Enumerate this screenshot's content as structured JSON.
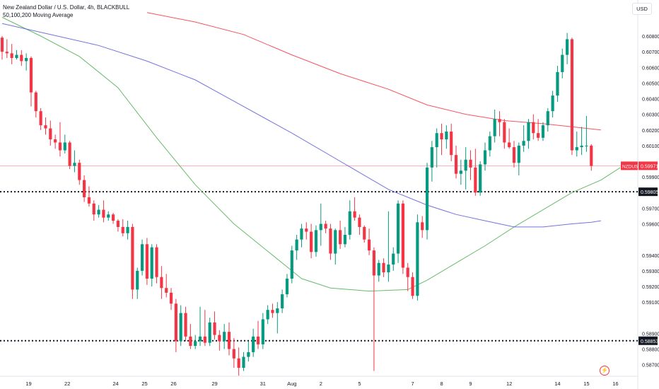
{
  "legend": {
    "title": "New Zealand Dollar / U.S. Dollar, 4h, BLACKBULL",
    "indicator": "50,100,200 Moving Average"
  },
  "currency_label": "USD",
  "colors": {
    "up": "#089981",
    "down": "#f23645",
    "ma50": "#4caf50",
    "ma100": "#5b5bd6",
    "ma200": "#f23645",
    "axis_text": "#131722",
    "price_line": "#f23645"
  },
  "icons": {
    "badge": "lightning-icon"
  },
  "chart_data": {
    "type": "candlestick",
    "symbol": "NZDUSD",
    "price_label": "NZDUSD",
    "ylim": [
      0.58635,
      0.60895
    ],
    "y_ticks": [
      {
        "value": 0.587,
        "label": "0.58700"
      },
      {
        "value": 0.588,
        "label": "0.58800"
      },
      {
        "value": 0.589,
        "label": "0.58900"
      },
      {
        "value": 0.591,
        "label": "0.59100"
      },
      {
        "value": 0.592,
        "label": "0.59200"
      },
      {
        "value": 0.593,
        "label": "0.59300"
      },
      {
        "value": 0.594,
        "label": "0.59400"
      },
      {
        "value": 0.596,
        "label": "0.59600"
      },
      {
        "value": 0.597,
        "label": "0.59700"
      },
      {
        "value": 0.599,
        "label": "0.59900"
      },
      {
        "value": 0.601,
        "label": "0.60100"
      },
      {
        "value": 0.602,
        "label": "0.60200"
      },
      {
        "value": 0.603,
        "label": "0.60300"
      },
      {
        "value": 0.604,
        "label": "0.60400"
      },
      {
        "value": 0.605,
        "label": "0.60500"
      },
      {
        "value": 0.606,
        "label": "0.60600"
      },
      {
        "value": 0.607,
        "label": "0.60700"
      },
      {
        "value": 0.608,
        "label": "0.60800"
      }
    ],
    "x_ticks": [
      {
        "i": 5.5,
        "label": "19"
      },
      {
        "i": 13.5,
        "label": "22"
      },
      {
        "i": 23.5,
        "label": "24"
      },
      {
        "i": 29.5,
        "label": "25"
      },
      {
        "i": 35.5,
        "label": "26"
      },
      {
        "i": 44,
        "label": "29"
      },
      {
        "i": 54,
        "label": "31"
      },
      {
        "i": 60,
        "label": "Aug"
      },
      {
        "i": 66,
        "label": "2"
      },
      {
        "i": 74,
        "label": "5"
      },
      {
        "i": 85,
        "label": "7"
      },
      {
        "i": 91,
        "label": "8"
      },
      {
        "i": 97,
        "label": "9"
      },
      {
        "i": 105,
        "label": "12"
      },
      {
        "i": 115,
        "label": "14"
      },
      {
        "i": 121,
        "label": "15"
      },
      {
        "i": 127,
        "label": "16"
      }
    ],
    "candles": [
      [
        0.6079,
        0.608,
        0.6065,
        0.607
      ],
      [
        0.607,
        0.6078,
        0.6066,
        0.6069
      ],
      [
        0.6069,
        0.6075,
        0.6062,
        0.6066
      ],
      [
        0.6066,
        0.6071,
        0.6065,
        0.6068
      ],
      [
        0.6068,
        0.6071,
        0.6061,
        0.6064
      ],
      [
        0.6064,
        0.6069,
        0.6058,
        0.6066
      ],
      [
        0.6066,
        0.6067,
        0.6035,
        0.6044
      ],
      [
        0.6044,
        0.6045,
        0.6028,
        0.6032
      ],
      [
        0.6032,
        0.6034,
        0.602,
        0.6023
      ],
      [
        0.6023,
        0.6028,
        0.6017,
        0.6021
      ],
      [
        0.6021,
        0.6026,
        0.601,
        0.6014
      ],
      [
        0.6014,
        0.6017,
        0.6008,
        0.6012
      ],
      [
        0.6012,
        0.6025,
        0.6003,
        0.6007
      ],
      [
        0.6007,
        0.6017,
        0.6005,
        0.6012
      ],
      [
        0.6012,
        0.6013,
        0.5995,
        0.5997
      ],
      [
        0.5997,
        0.6007,
        0.5993,
        0.5999
      ],
      [
        0.5999,
        0.6001,
        0.5985,
        0.5988
      ],
      [
        0.5988,
        0.5991,
        0.5974,
        0.5977
      ],
      [
        0.5977,
        0.5984,
        0.5971,
        0.5973
      ],
      [
        0.5973,
        0.5975,
        0.5962,
        0.5966
      ],
      [
        0.5966,
        0.5972,
        0.5964,
        0.5969
      ],
      [
        0.5969,
        0.5975,
        0.5961,
        0.5964
      ],
      [
        0.5964,
        0.5968,
        0.5962,
        0.5966
      ],
      [
        0.5966,
        0.5967,
        0.596,
        0.5962
      ],
      [
        0.5962,
        0.5963,
        0.5955,
        0.5958
      ],
      [
        0.5958,
        0.5963,
        0.5952,
        0.5954
      ],
      [
        0.5954,
        0.5962,
        0.595,
        0.5958
      ],
      [
        0.5958,
        0.596,
        0.5912,
        0.5918
      ],
      [
        0.5918,
        0.5932,
        0.5912,
        0.593
      ],
      [
        0.593,
        0.595,
        0.5927,
        0.5947
      ],
      [
        0.5947,
        0.5951,
        0.5921,
        0.5925
      ],
      [
        0.5925,
        0.5947,
        0.592,
        0.5945
      ],
      [
        0.5945,
        0.5947,
        0.5922,
        0.5926
      ],
      [
        0.5926,
        0.5933,
        0.5912,
        0.5919
      ],
      [
        0.5919,
        0.5928,
        0.5913,
        0.5916
      ],
      [
        0.5916,
        0.5919,
        0.5905,
        0.5909
      ],
      [
        0.5909,
        0.5912,
        0.5878,
        0.5885
      ],
      [
        0.5885,
        0.5908,
        0.5882,
        0.5903
      ],
      [
        0.5903,
        0.5907,
        0.5885,
        0.5888
      ],
      [
        0.5888,
        0.5896,
        0.588,
        0.5882
      ],
      [
        0.5882,
        0.5889,
        0.588,
        0.5885
      ],
      [
        0.5885,
        0.5907,
        0.5882,
        0.5888
      ],
      [
        0.5888,
        0.5905,
        0.5882,
        0.5884
      ],
      [
        0.5884,
        0.59,
        0.5882,
        0.5897
      ],
      [
        0.5897,
        0.5904,
        0.5886,
        0.5889
      ],
      [
        0.5889,
        0.5892,
        0.5879,
        0.5885
      ],
      [
        0.5885,
        0.5896,
        0.588,
        0.5891
      ],
      [
        0.5891,
        0.5897,
        0.5876,
        0.588
      ],
      [
        0.588,
        0.5887,
        0.5868,
        0.5874
      ],
      [
        0.5874,
        0.5881,
        0.5863,
        0.5868
      ],
      [
        0.5868,
        0.5878,
        0.5866,
        0.5875
      ],
      [
        0.5875,
        0.5885,
        0.5872,
        0.5878
      ],
      [
        0.5878,
        0.5893,
        0.5875,
        0.5888
      ],
      [
        0.5888,
        0.5898,
        0.588,
        0.5883
      ],
      [
        0.5883,
        0.5903,
        0.588,
        0.5899
      ],
      [
        0.5899,
        0.5908,
        0.5896,
        0.5905
      ],
      [
        0.5905,
        0.5909,
        0.59,
        0.5903
      ],
      [
        0.5903,
        0.591,
        0.589,
        0.5906
      ],
      [
        0.5906,
        0.5918,
        0.5903,
        0.5915
      ],
      [
        0.5915,
        0.5928,
        0.5913,
        0.5925
      ],
      [
        0.5925,
        0.5946,
        0.5922,
        0.5943
      ],
      [
        0.5943,
        0.5953,
        0.5937,
        0.595
      ],
      [
        0.595,
        0.596,
        0.5945,
        0.5957
      ],
      [
        0.5957,
        0.5961,
        0.595,
        0.5955
      ],
      [
        0.5955,
        0.596,
        0.5938,
        0.5942
      ],
      [
        0.5942,
        0.5959,
        0.5939,
        0.5956
      ],
      [
        0.5956,
        0.5973,
        0.5946,
        0.596
      ],
      [
        0.596,
        0.5962,
        0.5954,
        0.5957
      ],
      [
        0.5957,
        0.596,
        0.5937,
        0.5941
      ],
      [
        0.5941,
        0.5957,
        0.5934,
        0.5956
      ],
      [
        0.5956,
        0.5962,
        0.5944,
        0.5947
      ],
      [
        0.5947,
        0.5958,
        0.5945,
        0.5953
      ],
      [
        0.5953,
        0.5975,
        0.595,
        0.5968
      ],
      [
        0.5968,
        0.5977,
        0.5962,
        0.5964
      ],
      [
        0.5964,
        0.5966,
        0.5953,
        0.5958
      ],
      [
        0.5958,
        0.5959,
        0.5948,
        0.595
      ],
      [
        0.595,
        0.5957,
        0.594,
        0.5943
      ],
      [
        0.5943,
        0.5945,
        0.5866,
        0.5927
      ],
      [
        0.5927,
        0.5937,
        0.5923,
        0.5935
      ],
      [
        0.5935,
        0.5938,
        0.5926,
        0.5929
      ],
      [
        0.5929,
        0.5968,
        0.5923,
        0.5934
      ],
      [
        0.5934,
        0.5945,
        0.593,
        0.5941
      ],
      [
        0.5941,
        0.5975,
        0.5935,
        0.5973
      ],
      [
        0.5973,
        0.5975,
        0.5928,
        0.5932
      ],
      [
        0.5932,
        0.5935,
        0.5917,
        0.5926
      ],
      [
        0.5926,
        0.5929,
        0.5912,
        0.5914
      ],
      [
        0.5914,
        0.5966,
        0.5911,
        0.5961
      ],
      [
        0.5961,
        0.5965,
        0.5951,
        0.5956
      ],
      [
        0.5956,
        0.5999,
        0.595,
        0.5996
      ],
      [
        0.5996,
        0.6013,
        0.5987,
        0.6009
      ],
      [
        0.6009,
        0.6021,
        0.5996,
        0.6018
      ],
      [
        0.6018,
        0.6024,
        0.6004,
        0.6014
      ],
      [
        0.6014,
        0.6023,
        0.6008,
        0.6019
      ],
      [
        0.6019,
        0.6024,
        0.6,
        0.6004
      ],
      [
        0.6004,
        0.601,
        0.5989,
        0.5992
      ],
      [
        0.5992,
        0.6001,
        0.5985,
        0.5994
      ],
      [
        0.5994,
        0.6009,
        0.5982,
        0.6001
      ],
      [
        0.6001,
        0.6007,
        0.5988,
        0.5996
      ],
      [
        0.5996,
        0.6008,
        0.5978,
        0.598
      ],
      [
        0.598,
        0.6,
        0.5978,
        0.5998
      ],
      [
        0.5998,
        0.6012,
        0.5994,
        0.6007
      ],
      [
        0.6007,
        0.6019,
        0.6003,
        0.6016
      ],
      [
        0.6016,
        0.6033,
        0.6012,
        0.6027
      ],
      [
        0.6027,
        0.6032,
        0.6016,
        0.6025
      ],
      [
        0.6025,
        0.6027,
        0.6008,
        0.6012
      ],
      [
        0.6012,
        0.6021,
        0.6008,
        0.6009
      ],
      [
        0.6009,
        0.6013,
        0.5996,
        0.5999
      ],
      [
        0.5999,
        0.6012,
        0.5991,
        0.601
      ],
      [
        0.601,
        0.6023,
        0.6006,
        0.6013
      ],
      [
        0.6013,
        0.6027,
        0.6008,
        0.6025
      ],
      [
        0.6025,
        0.603,
        0.6014,
        0.6018
      ],
      [
        0.6018,
        0.6027,
        0.6013,
        0.6015
      ],
      [
        0.6015,
        0.6025,
        0.6013,
        0.6023
      ],
      [
        0.6023,
        0.6034,
        0.6019,
        0.6032
      ],
      [
        0.6032,
        0.6045,
        0.6028,
        0.6042
      ],
      [
        0.6042,
        0.6061,
        0.6038,
        0.6057
      ],
      [
        0.6057,
        0.6072,
        0.6053,
        0.6068
      ],
      [
        0.6068,
        0.6082,
        0.6062,
        0.6078
      ],
      [
        0.6078,
        0.6079,
        0.6004,
        0.6007
      ],
      [
        0.6007,
        0.6019,
        0.6003,
        0.6009
      ],
      [
        0.6009,
        0.6022,
        0.6004,
        0.601
      ],
      [
        0.601,
        0.6029,
        0.6006,
        0.601
      ],
      [
        0.601,
        0.6011,
        0.5994,
        0.5997
      ]
    ],
    "moving_averages": [
      {
        "period": 50,
        "color": "#4caf50",
        "points": [
          [
            0,
            0.6092
          ],
          [
            8,
            0.608
          ],
          [
            16,
            0.6067
          ],
          [
            24,
            0.6047
          ],
          [
            32,
            0.6015
          ],
          [
            40,
            0.5985
          ],
          [
            48,
            0.596
          ],
          [
            56,
            0.594
          ],
          [
            62,
            0.5925
          ],
          [
            68,
            0.5919
          ],
          [
            76,
            0.5917
          ],
          [
            84,
            0.5918
          ],
          [
            88,
            0.5924
          ],
          [
            94,
            0.5935
          ],
          [
            100,
            0.5946
          ],
          [
            106,
            0.5958
          ],
          [
            112,
            0.5969
          ],
          [
            118,
            0.598
          ],
          [
            124,
            0.5988
          ],
          [
            128,
            0.5996
          ]
        ]
      },
      {
        "period": 100,
        "color": "#5b5bd6",
        "points": [
          [
            0,
            0.6088
          ],
          [
            10,
            0.6081
          ],
          [
            20,
            0.6074
          ],
          [
            30,
            0.6064
          ],
          [
            40,
            0.6052
          ],
          [
            50,
            0.6035
          ],
          [
            60,
            0.6018
          ],
          [
            70,
            0.6
          ],
          [
            80,
            0.5982
          ],
          [
            88,
            0.5972
          ],
          [
            94,
            0.5966
          ],
          [
            100,
            0.5962
          ],
          [
            106,
            0.5958
          ],
          [
            112,
            0.5958
          ],
          [
            118,
            0.596
          ],
          [
            122,
            0.5961
          ],
          [
            124,
            0.5962
          ]
        ]
      },
      {
        "period": 200,
        "color": "#f23645",
        "points": [
          [
            30,
            0.6095
          ],
          [
            40,
            0.6089
          ],
          [
            50,
            0.6081
          ],
          [
            60,
            0.6068
          ],
          [
            70,
            0.6056
          ],
          [
            80,
            0.6046
          ],
          [
            88,
            0.6036
          ],
          [
            96,
            0.603
          ],
          [
            104,
            0.6026
          ],
          [
            112,
            0.6024
          ],
          [
            118,
            0.6022
          ],
          [
            124,
            0.602
          ]
        ]
      }
    ],
    "last_price": {
      "value": 0.59971,
      "label": "0.59971"
    },
    "level_lines": [
      {
        "value": 0.59805,
        "label": "0.59805"
      },
      {
        "value": 0.58853,
        "label": "0.58853"
      }
    ]
  }
}
